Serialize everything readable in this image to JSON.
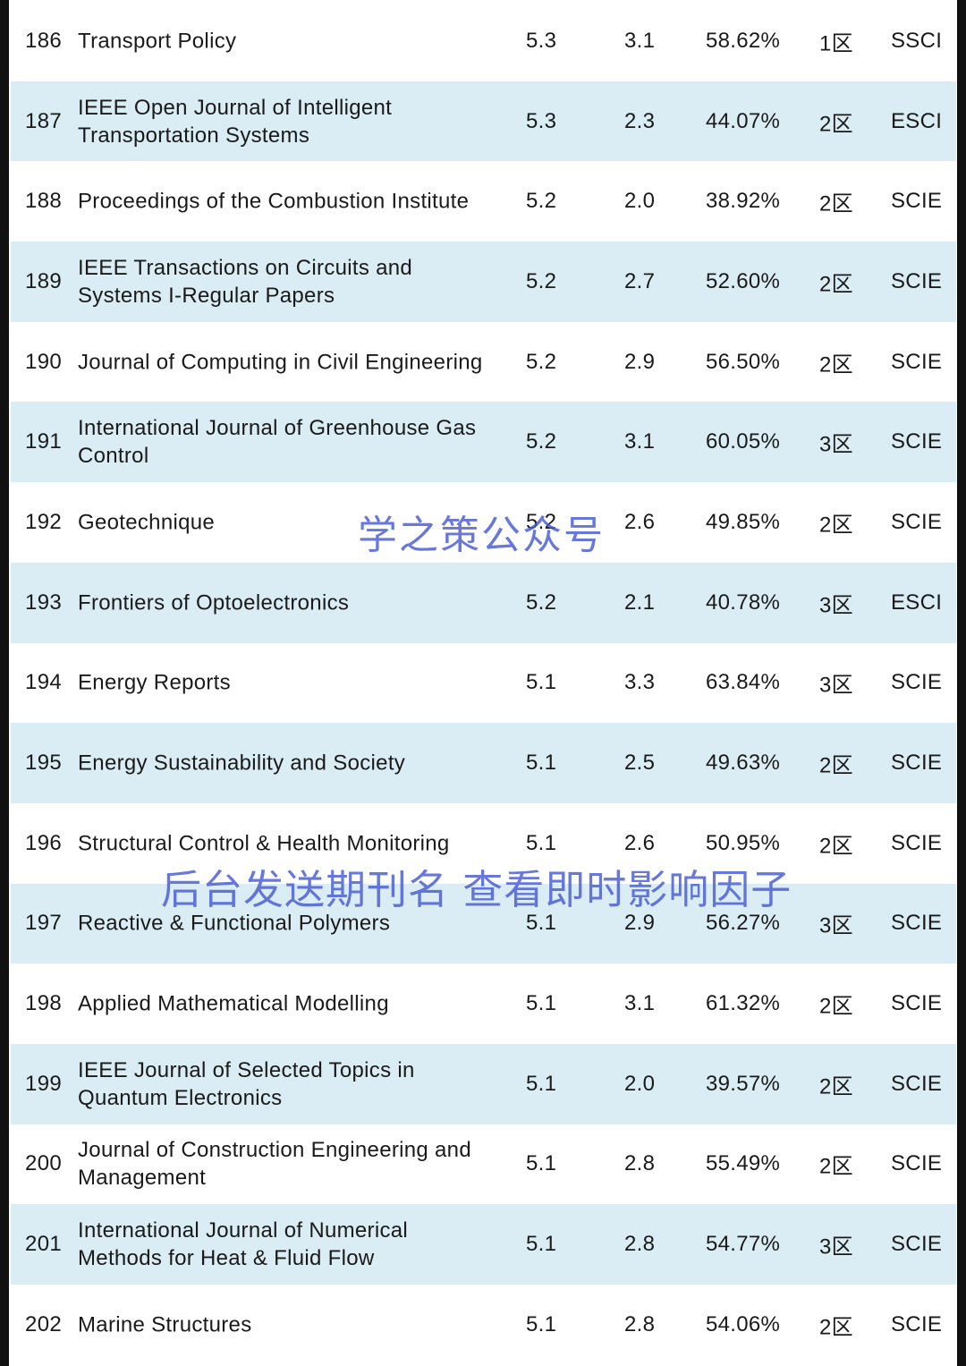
{
  "rows": [
    {
      "rank": "186",
      "name": "Transport Policy",
      "if": "5.3",
      "if5": "3.1",
      "pct": "58.62%",
      "zone": "1区",
      "db": "SSCI"
    },
    {
      "rank": "187",
      "name": "IEEE Open Journal of Intelligent Transportation Systems",
      "if": "5.3",
      "if5": "2.3",
      "pct": "44.07%",
      "zone": "2区",
      "db": "ESCI"
    },
    {
      "rank": "188",
      "name": "Proceedings of the Combustion Institute",
      "if": "5.2",
      "if5": "2.0",
      "pct": "38.92%",
      "zone": "2区",
      "db": "SCIE"
    },
    {
      "rank": "189",
      "name": "IEEE Transactions on Circuits and Systems I-Regular Papers",
      "if": "5.2",
      "if5": "2.7",
      "pct": "52.60%",
      "zone": "2区",
      "db": "SCIE"
    },
    {
      "rank": "190",
      "name": "Journal of Computing in Civil Engineering",
      "if": "5.2",
      "if5": "2.9",
      "pct": "56.50%",
      "zone": "2区",
      "db": "SCIE"
    },
    {
      "rank": "191",
      "name": "International Journal of Greenhouse Gas Control",
      "if": "5.2",
      "if5": "3.1",
      "pct": "60.05%",
      "zone": "3区",
      "db": "SCIE"
    },
    {
      "rank": "192",
      "name": "Geotechnique",
      "if": "5.2",
      "if5": "2.6",
      "pct": "49.85%",
      "zone": "2区",
      "db": "SCIE"
    },
    {
      "rank": "193",
      "name": "Frontiers of Optoelectronics",
      "if": "5.2",
      "if5": "2.1",
      "pct": "40.78%",
      "zone": "3区",
      "db": "ESCI"
    },
    {
      "rank": "194",
      "name": "Energy Reports",
      "if": "5.1",
      "if5": "3.3",
      "pct": "63.84%",
      "zone": "3区",
      "db": "SCIE"
    },
    {
      "rank": "195",
      "name": "Energy Sustainability and Society",
      "if": "5.1",
      "if5": "2.5",
      "pct": "49.63%",
      "zone": "2区",
      "db": "SCIE"
    },
    {
      "rank": "196",
      "name": "Structural Control & Health Monitoring",
      "if": "5.1",
      "if5": "2.6",
      "pct": "50.95%",
      "zone": "2区",
      "db": "SCIE"
    },
    {
      "rank": "197",
      "name": "Reactive & Functional Polymers",
      "if": "5.1",
      "if5": "2.9",
      "pct": "56.27%",
      "zone": "3区",
      "db": "SCIE"
    },
    {
      "rank": "198",
      "name": "Applied Mathematical Modelling",
      "if": "5.1",
      "if5": "3.1",
      "pct": "61.32%",
      "zone": "2区",
      "db": "SCIE"
    },
    {
      "rank": "199",
      "name": "IEEE Journal of Selected Topics in Quantum Electronics",
      "if": "5.1",
      "if5": "2.0",
      "pct": "39.57%",
      "zone": "2区",
      "db": "SCIE"
    },
    {
      "rank": "200",
      "name": "Journal of Construction Engineering and Management",
      "if": "5.1",
      "if5": "2.8",
      "pct": "55.49%",
      "zone": "2区",
      "db": "SCIE"
    },
    {
      "rank": "201",
      "name": "International Journal of Numerical Methods for Heat & Fluid Flow",
      "if": "5.1",
      "if5": "2.8",
      "pct": "54.77%",
      "zone": "3区",
      "db": "SCIE"
    },
    {
      "rank": "202",
      "name": "Marine Structures",
      "if": "5.1",
      "if5": "2.8",
      "pct": "54.06%",
      "zone": "2区",
      "db": "SCIE"
    }
  ],
  "watermarks": {
    "top": "学之策公众号",
    "bottom": "后台发送期刊名 查看即时影响因子"
  },
  "colors": {
    "row_shade": "#daecf4",
    "watermark": "#465ad2"
  }
}
